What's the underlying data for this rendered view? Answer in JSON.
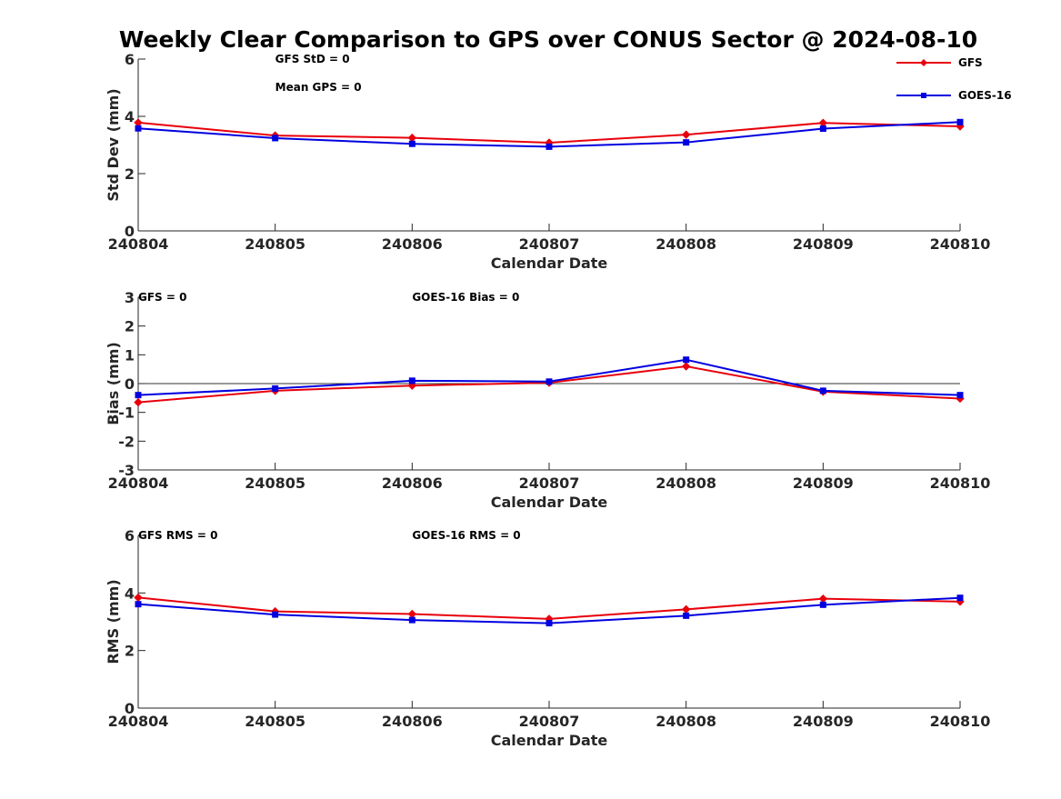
{
  "chart_data": {
    "type": "line",
    "title": "Weekly Clear Comparison to GPS over CONUS Sector @ 2024-08-10",
    "categories": [
      "240804",
      "240805",
      "240806",
      "240807",
      "240808",
      "240809",
      "240810"
    ],
    "legend": {
      "placement": "top-right",
      "entries": [
        {
          "name": "GFS",
          "color": "#e8000b",
          "marker": "diamond"
        },
        {
          "name": "GOES-16",
          "color": "#0000e0",
          "marker": "square"
        }
      ]
    },
    "panels": [
      {
        "id": "std",
        "xlabel": "Calendar Date",
        "ylabel": "Std Dev (mm)",
        "ylim": [
          0,
          6
        ],
        "yticks": [
          0,
          2,
          4,
          6
        ],
        "zero_line": false,
        "annotations": [
          {
            "text": "GFS StD = 0",
            "anchor": "240805",
            "row": 1
          },
          {
            "text": "Mean GPS = 0",
            "anchor": "240805",
            "row": 2
          }
        ],
        "series": [
          {
            "name": "GFS",
            "values": [
              3.78,
              3.33,
              3.25,
              3.08,
              3.36,
              3.77,
              3.65
            ]
          },
          {
            "name": "GOES-16",
            "values": [
              3.58,
              3.24,
              3.04,
              2.94,
              3.09,
              3.57,
              3.8
            ]
          }
        ]
      },
      {
        "id": "bias",
        "xlabel": "Calendar Date",
        "ylabel": "Bias (mm)",
        "ylim": [
          -3,
          3
        ],
        "yticks": [
          -3,
          -2,
          -1,
          0,
          1,
          2,
          3
        ],
        "zero_line": true,
        "annotations": [
          {
            "text": "GFS = 0",
            "anchor": "240804",
            "row": 1
          },
          {
            "text": "GOES-16 Bias  = 0",
            "anchor": "240806",
            "row": 1
          }
        ],
        "series": [
          {
            "name": "GFS",
            "values": [
              -0.65,
              -0.25,
              -0.07,
              0.03,
              0.6,
              -0.28,
              -0.52
            ]
          },
          {
            "name": "GOES-16",
            "values": [
              -0.4,
              -0.17,
              0.1,
              0.07,
              0.83,
              -0.25,
              -0.4
            ]
          }
        ]
      },
      {
        "id": "rms",
        "xlabel": "Calendar Date",
        "ylabel": "RMS (mm)",
        "ylim": [
          0,
          6
        ],
        "yticks": [
          0,
          2,
          4,
          6
        ],
        "zero_line": false,
        "annotations": [
          {
            "text": "GFS RMS = 0",
            "anchor": "240804",
            "row": 1
          },
          {
            "text": "GOES-16 RMS = 0",
            "anchor": "240806",
            "row": 1
          }
        ],
        "series": [
          {
            "name": "GFS",
            "values": [
              3.84,
              3.36,
              3.27,
              3.1,
              3.43,
              3.8,
              3.7
            ]
          },
          {
            "name": "GOES-16",
            "values": [
              3.61,
              3.25,
              3.06,
              2.95,
              3.21,
              3.59,
              3.83
            ]
          }
        ]
      }
    ]
  }
}
